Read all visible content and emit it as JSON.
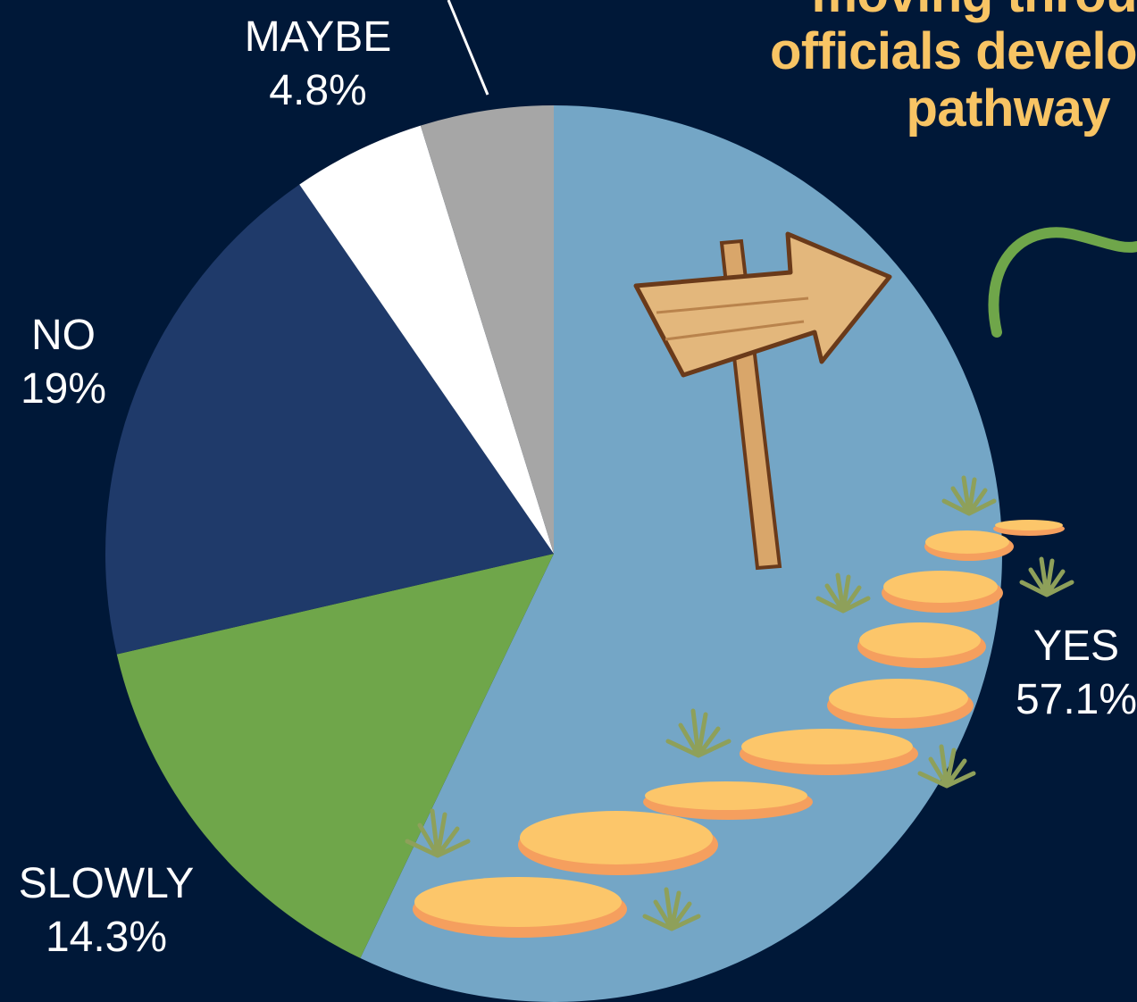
{
  "title_lines": [
    "moving throu",
    "officials develo",
    "pathway"
  ],
  "chart_data": {
    "type": "pie",
    "title": "",
    "slices": [
      {
        "label": "YES",
        "value": 57.1,
        "display": "57.1%",
        "color": "#74a6c6"
      },
      {
        "label": "SLOWLY",
        "value": 14.3,
        "display": "14.3%",
        "color": "#6fa64a"
      },
      {
        "label": "NO",
        "value": 19,
        "display": "19%",
        "color": "#1f3a6a"
      },
      {
        "label": "",
        "value": 4.8,
        "display": "",
        "color": "#ffffff"
      },
      {
        "label": "MAYBE",
        "value": 4.8,
        "display": "4.8%",
        "color": "#a6a6a6"
      }
    ],
    "start": "12 o'clock, clockwise",
    "legend": "none"
  },
  "decorations": [
    "signpost-icon",
    "stepping-stones",
    "grass-tufts",
    "green-vine"
  ]
}
